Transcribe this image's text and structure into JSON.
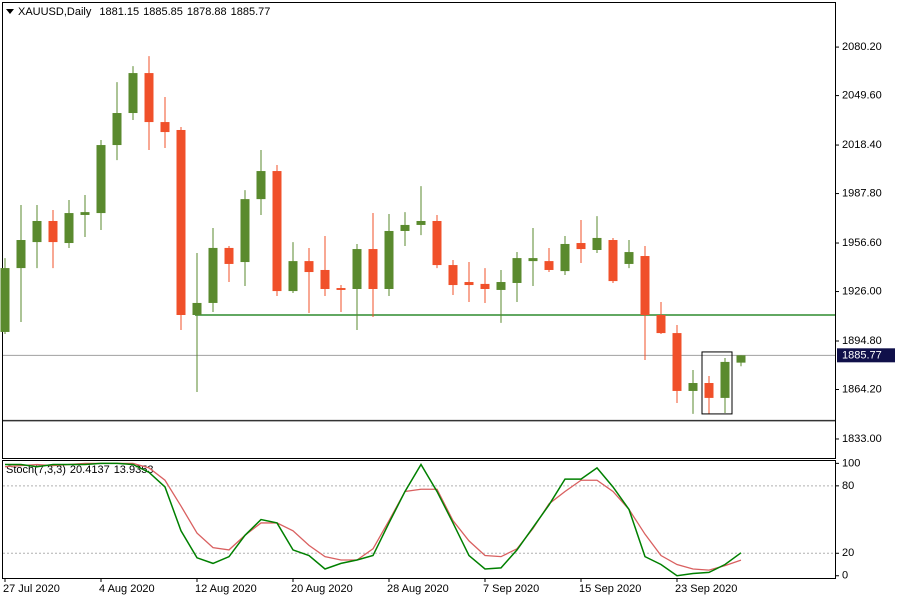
{
  "chart_data": [
    {
      "type": "candlestick",
      "title": "XAUUSD,Daily",
      "categories": [
        "27 Jul 2020",
        null,
        null,
        null,
        null,
        null,
        "4 Aug 2020",
        null,
        null,
        null,
        null,
        null,
        "12 Aug 2020",
        null,
        null,
        null,
        null,
        null,
        "20 Aug 2020",
        null,
        null,
        null,
        null,
        null,
        "28 Aug 2020",
        null,
        null,
        null,
        null,
        null,
        "7 Sep 2020",
        null,
        null,
        null,
        null,
        null,
        "15 Sep 2020",
        null,
        null,
        null,
        null,
        null,
        "23 Sep 2020",
        null,
        null,
        null,
        null
      ],
      "open": [
        1900.5,
        1940.8,
        1957.2,
        1970.5,
        1956.6,
        1974.3,
        1975.5,
        2018.4,
        2038.6,
        2063.8,
        2032.9,
        2027.9,
        1911.2,
        1918.8,
        1953.5,
        1944.6,
        1984.3,
        2002.0,
        1926.3,
        1945.2,
        1939.6,
        1928.2,
        1927.6,
        1952.8,
        1927.6,
        1964.2,
        1968.0,
        1970.5,
        1942.7,
        1932.0,
        1930.8,
        1927.0,
        1931.4,
        1945.2,
        1945.2,
        1938.9,
        1956.6,
        1952.2,
        1958.5,
        1943.4,
        1948.4,
        1911.2,
        1899.8,
        1863.3,
        1868.3,
        1858.9,
        1881.15
      ],
      "high": [
        1947.1,
        1980.6,
        1980.6,
        1977.4,
        1983.7,
        1986.9,
        2021.6,
        2058.1,
        2068.2,
        2074.5,
        2048.7,
        2029.8,
        1950.3,
        1966.1,
        1954.7,
        1990.0,
        2015.3,
        2005.8,
        1957.2,
        1953.5,
        1961.0,
        1930.1,
        1956.0,
        1975.5,
        1974.9,
        1976.1,
        1992.5,
        1974.3,
        1945.9,
        1944.6,
        1940.8,
        1939.6,
        1950.9,
        1966.1,
        1953.5,
        1961.0,
        1971.1,
        1973.6,
        1959.8,
        1958.5,
        1954.7,
        1919.4,
        1904.9,
        1876.5,
        1872.7,
        1884.1,
        1885.85
      ],
      "low": [
        1899.2,
        1906.8,
        1940.8,
        1940.8,
        1953.5,
        1960.4,
        1964.8,
        2008.9,
        2034.2,
        2015.3,
        2016.5,
        1901.7,
        1862.6,
        1913.1,
        1932.0,
        1929.5,
        1974.3,
        1923.2,
        1925.1,
        1912.5,
        1923.2,
        1913.1,
        1901.7,
        1909.9,
        1923.2,
        1954.7,
        1961.6,
        1940.8,
        1923.8,
        1919.4,
        1918.8,
        1906.2,
        1919.4,
        1929.5,
        1938.3,
        1936.4,
        1944.0,
        1950.3,
        1931.4,
        1940.8,
        1882.8,
        1899.2,
        1855.7,
        1848.8,
        1848.8,
        1849.4,
        1878.88
      ],
      "close": [
        1940.8,
        1958.5,
        1970.5,
        1957.2,
        1975.5,
        1976.1,
        2018.4,
        2038.6,
        2063.8,
        2032.9,
        2026.6,
        1911.2,
        1918.8,
        1953.5,
        1943.4,
        1984.3,
        2002.0,
        1926.3,
        1945.2,
        1938.3,
        1927.6,
        1927.0,
        1952.8,
        1927.6,
        1964.2,
        1968.0,
        1970.5,
        1942.7,
        1930.1,
        1930.1,
        1927.6,
        1932.0,
        1947.1,
        1947.1,
        1939.6,
        1956.0,
        1952.8,
        1959.8,
        1932.6,
        1950.9,
        1911.2,
        1899.8,
        1863.3,
        1868.3,
        1858.9,
        1881.6,
        1885.77
      ],
      "up_color": "#5a8a2e",
      "down_color": "#f0502a",
      "ylim": [
        1821,
        2108
      ],
      "yticks": [
        {
          "value": 2080.2,
          "label": "2080.20"
        },
        {
          "value": 2049.6,
          "label": "2049.60"
        },
        {
          "value": 2018.4,
          "label": "2018.40"
        },
        {
          "value": 1987.8,
          "label": "1987.80"
        },
        {
          "value": 1956.6,
          "label": "1956.60"
        },
        {
          "value": 1926,
          "label": "1926.00"
        },
        {
          "value": 1894.8,
          "label": "1894.80"
        },
        {
          "value": 1864.2,
          "label": "1864.20"
        },
        {
          "value": 1833,
          "label": "1833.00"
        }
      ],
      "hlines": [
        {
          "value": 1911.2,
          "color": "#2e8b2e"
        },
        {
          "value": 1844.6,
          "color": "#333333"
        }
      ],
      "rectangle": {
        "top": 1887.9,
        "bottom": 1848.8
      },
      "price_line_color": "#a0a0a0",
      "price_label_color": "#10104a"
    },
    {
      "type": "line",
      "title": "Stoch(7,3,3)",
      "series": [
        {
          "color": "#008000",
          "values": [
            99,
            99,
            97,
            99,
            99,
            99,
            100,
            100,
            99,
            92,
            79,
            40,
            16,
            11,
            17,
            36,
            50,
            47,
            23,
            18,
            6,
            11,
            14,
            18,
            47,
            75,
            99,
            75,
            47,
            18,
            6,
            7,
            23,
            43,
            63,
            86,
            86,
            96,
            79,
            59,
            17,
            10,
            0,
            2,
            3,
            10,
            20.4137
          ]
        },
        {
          "color": "#d96060",
          "values": [
            97,
            98,
            99,
            98,
            99,
            100,
            100,
            100,
            100,
            96,
            85,
            62,
            38,
            25,
            23,
            36,
            47,
            47,
            40,
            27,
            17,
            14,
            14,
            24,
            49,
            75,
            77,
            77,
            49,
            31,
            18,
            17,
            24,
            42,
            64,
            75,
            85,
            85,
            75,
            59,
            37,
            18,
            10,
            6,
            5,
            9,
            13.9353
          ]
        }
      ],
      "ylim": [
        -2,
        103
      ],
      "yticks": [
        100,
        80,
        20,
        0
      ],
      "levels": [
        20,
        80
      ]
    }
  ]
}
